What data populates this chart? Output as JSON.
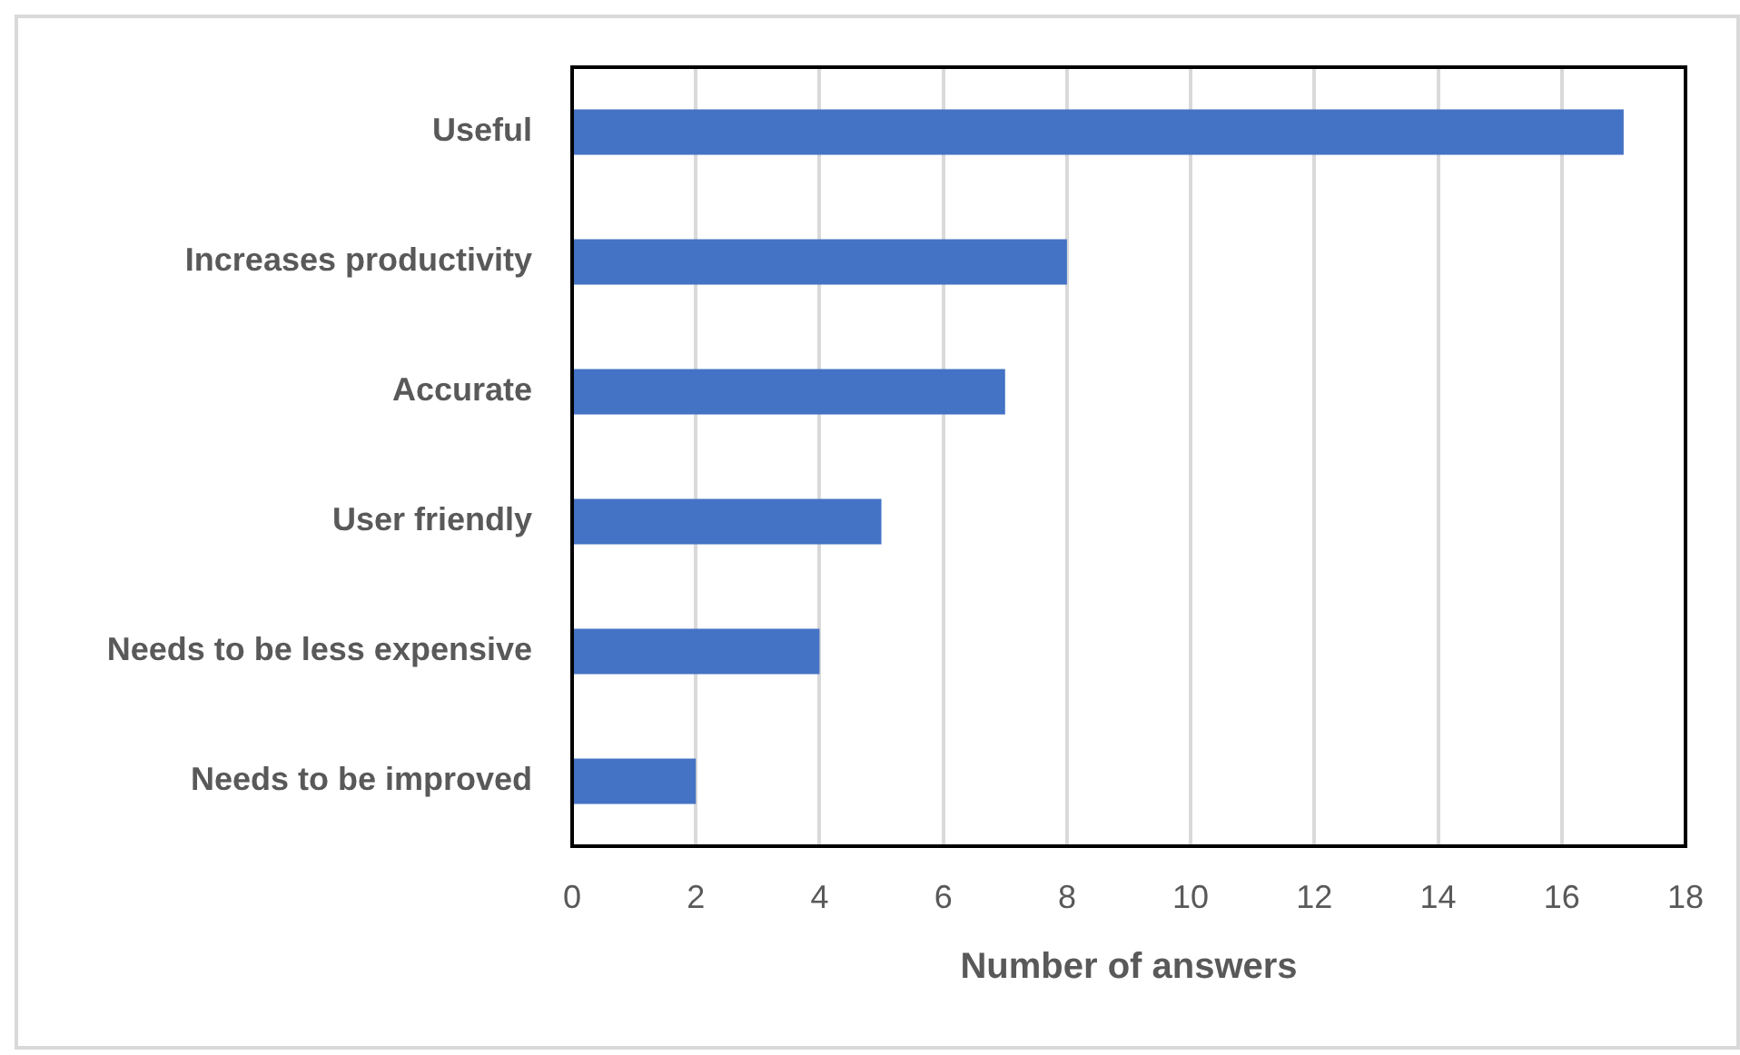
{
  "chart_data": {
    "type": "bar",
    "orientation": "horizontal",
    "categories": [
      "Useful",
      "Increases productivity",
      "Accurate",
      "User friendly",
      "Needs to be less expensive",
      "Needs to be improved"
    ],
    "values": [
      17,
      8,
      7,
      5,
      4,
      2
    ],
    "color": "#4472c4",
    "xlabel": "Number of answers",
    "xlim": [
      0,
      18
    ],
    "xticks": [
      0,
      2,
      4,
      6,
      8,
      10,
      12,
      14,
      16,
      18
    ],
    "grid": "x",
    "legend": false
  }
}
